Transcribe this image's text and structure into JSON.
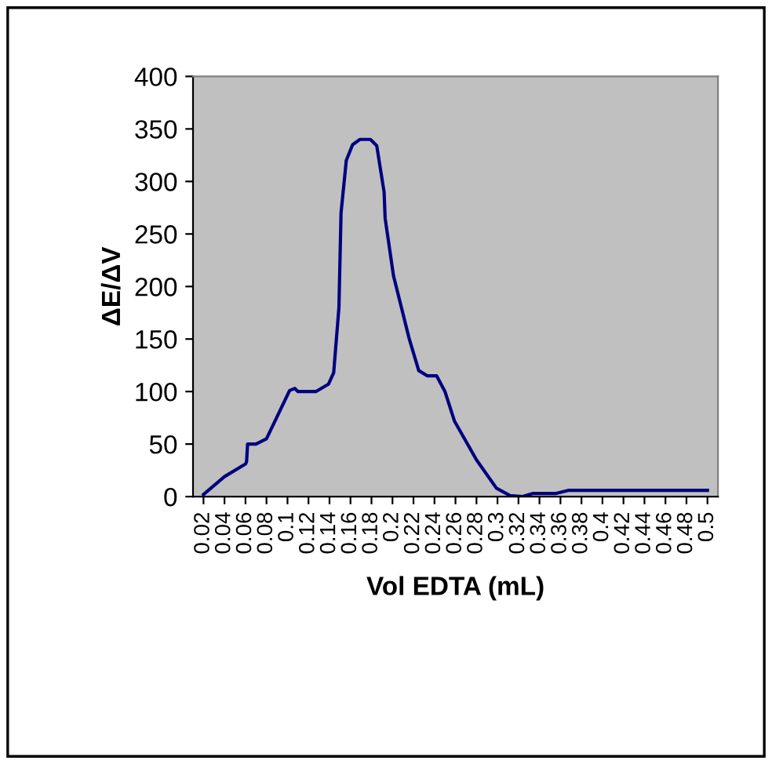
{
  "chart_data": {
    "type": "line",
    "xlabel": "Vol EDTA (mL)",
    "ylabel": "ΔE/ΔV",
    "x": [
      0.02,
      0.04,
      0.06,
      0.061,
      0.062,
      0.07,
      0.08,
      0.092,
      0.102,
      0.107,
      0.11,
      0.127,
      0.139,
      0.144,
      0.149,
      0.151,
      0.156,
      0.162,
      0.169,
      0.179,
      0.185,
      0.192,
      0.193,
      0.201,
      0.216,
      0.225,
      0.233,
      0.242,
      0.25,
      0.259,
      0.28,
      0.299,
      0.312,
      0.324,
      0.334,
      0.356,
      0.368,
      0.5
    ],
    "series": [
      {
        "color": "#000080",
        "values": [
          2,
          19,
          31,
          33,
          50,
          50,
          55,
          80,
          101,
          103,
          100,
          100,
          107,
          118,
          180,
          270,
          320,
          335,
          340,
          340,
          334,
          290,
          265,
          210,
          150,
          120,
          115,
          115,
          100,
          72,
          35,
          8,
          1,
          0,
          3,
          3,
          6,
          6
        ]
      }
    ],
    "xlim": [
      0.01,
      0.51
    ],
    "xticks": [
      {
        "value": 0.02,
        "label": "0.02"
      },
      {
        "value": 0.04,
        "label": "0.04"
      },
      {
        "value": 0.06,
        "label": "0.06"
      },
      {
        "value": 0.08,
        "label": "0.08"
      },
      {
        "value": 0.1,
        "label": "0.1"
      },
      {
        "value": 0.12,
        "label": "0.12"
      },
      {
        "value": 0.14,
        "label": "0.14"
      },
      {
        "value": 0.16,
        "label": "0.16"
      },
      {
        "value": 0.18,
        "label": "0.18"
      },
      {
        "value": 0.2,
        "label": "0.2"
      },
      {
        "value": 0.22,
        "label": "0.22"
      },
      {
        "value": 0.24,
        "label": "0.24"
      },
      {
        "value": 0.26,
        "label": "0.26"
      },
      {
        "value": 0.28,
        "label": "0.28"
      },
      {
        "value": 0.3,
        "label": "0.3"
      },
      {
        "value": 0.32,
        "label": "0.32"
      },
      {
        "value": 0.34,
        "label": "0.34"
      },
      {
        "value": 0.36,
        "label": "0.36"
      },
      {
        "value": 0.38,
        "label": "0.38"
      },
      {
        "value": 0.4,
        "label": "0.4"
      },
      {
        "value": 0.42,
        "label": "0.42"
      },
      {
        "value": 0.44,
        "label": "0.44"
      },
      {
        "value": 0.46,
        "label": "0.46"
      },
      {
        "value": 0.48,
        "label": "0.48"
      },
      {
        "value": 0.5,
        "label": "0.5"
      }
    ],
    "ylim": [
      0,
      400
    ],
    "yticks": [
      0,
      50,
      100,
      150,
      200,
      250,
      300,
      350,
      400
    ],
    "grid": false,
    "marker": "none",
    "line_style": "solid"
  }
}
